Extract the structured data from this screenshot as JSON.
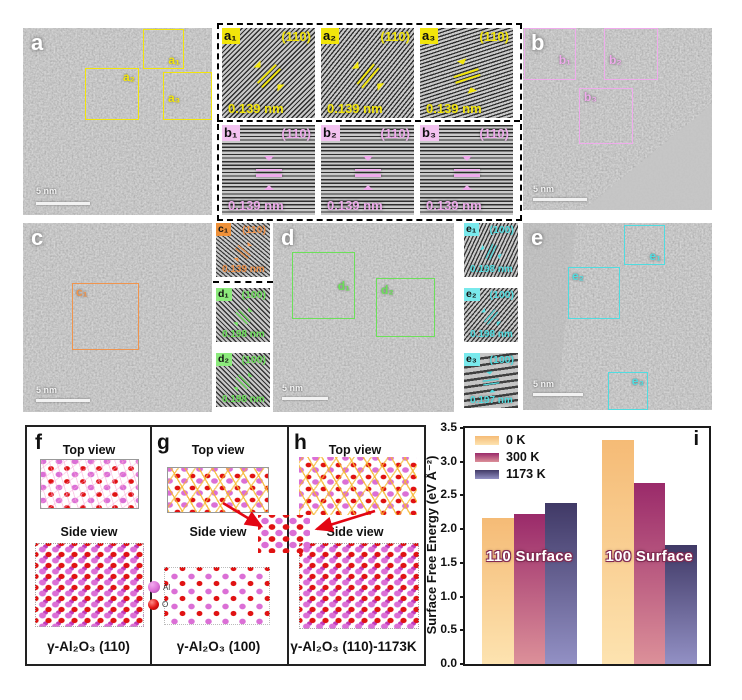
{
  "panels": {
    "a": {
      "letter": "a",
      "scale": "5 nm",
      "rois": [
        "a₁",
        "a₂",
        "a₃"
      ]
    },
    "b": {
      "letter": "b",
      "scale": "5 nm",
      "rois": [
        "b₁",
        "b₂",
        "b₃"
      ]
    },
    "c": {
      "letter": "c",
      "scale": "5 nm",
      "rois": [
        "c₁"
      ]
    },
    "d": {
      "letter": "d",
      "scale": "5 nm",
      "rois": [
        "d₁",
        "d₂"
      ]
    },
    "e": {
      "letter": "e",
      "scale": "5 nm",
      "rois": [
        "e₁",
        "e₂",
        "e₃"
      ]
    }
  },
  "insets": {
    "a1": {
      "label": "a₁",
      "plane": "(110)",
      "spacing": "0.139 nm"
    },
    "a2": {
      "label": "a₂",
      "plane": "(110)",
      "spacing": "0.139 nm"
    },
    "a3": {
      "label": "a₃",
      "plane": "(110)",
      "spacing": "0.139 nm"
    },
    "b1": {
      "label": "b₁",
      "plane": "(110)",
      "spacing": "0.139 nm"
    },
    "b2": {
      "label": "b₂",
      "plane": "(110)",
      "spacing": "0.139 nm"
    },
    "b3": {
      "label": "b₃",
      "plane": "(110)",
      "spacing": "0.139 nm"
    },
    "c1": {
      "label": "c₁",
      "plane": "(110)",
      "spacing": "0.139 nm"
    },
    "d1": {
      "label": "d₁",
      "plane": "(100)",
      "spacing": "0.198 nm"
    },
    "d2": {
      "label": "d₂",
      "plane": "(100)",
      "spacing": "0.198 nm"
    },
    "e1": {
      "label": "e₁",
      "plane": "(100)",
      "spacing": "0.198 nm"
    },
    "e2": {
      "label": "e₂",
      "plane": "(100)",
      "spacing": "0.198 nm"
    },
    "e3": {
      "label": "e₃",
      "plane": "(100)",
      "spacing": "0.197 nm"
    }
  },
  "structures": {
    "f": {
      "letter": "f",
      "top": "Top view",
      "side": "Side view",
      "caption": "γ-Al₂O₃ (110)"
    },
    "g": {
      "letter": "g",
      "top": "Top view",
      "side": "Side view",
      "caption": "γ-Al₂O₃ (100)"
    },
    "h": {
      "letter": "h",
      "top": "Top view",
      "side": "Side view",
      "caption": "γ-Al₂O₃ (110)-1173K"
    },
    "atom_legend": [
      {
        "symbol": "Al",
        "color": "#db6fd6"
      },
      {
        "symbol": "O",
        "color": "#e01212"
      }
    ]
  },
  "chart_letter": "i",
  "chart_data": {
    "type": "bar",
    "title": "",
    "xlabel": "",
    "ylabel": "Surface Free Energy (eV Å⁻²)",
    "categories": [
      "110 Surface",
      "100 Surface"
    ],
    "series": [
      {
        "name": "0 K",
        "values": [
          2.17,
          3.32
        ],
        "color_top": "#f5bb76",
        "color_bottom": "#fde3b0"
      },
      {
        "name": "300 K",
        "values": [
          2.23,
          2.69
        ],
        "color_top": "#9a2a6a",
        "color_bottom": "#dc9099"
      },
      {
        "name": "1173 K",
        "values": [
          2.39,
          1.76
        ],
        "color_top": "#403966",
        "color_bottom": "#9290c4"
      }
    ],
    "ylim": [
      0,
      3.5
    ],
    "yticks": [
      "0.0",
      "0.5",
      "1.0",
      "1.5",
      "2.0",
      "2.5",
      "3.0",
      "3.5"
    ],
    "legend_position": "top-left",
    "grid": false
  },
  "accent_colors": {
    "yellow": "#f2e50b",
    "violet": "#efabec",
    "orange": "#f0944d",
    "green": "#6ce05a",
    "cyan": "#50dce0",
    "arrow_red": "#e30613"
  }
}
